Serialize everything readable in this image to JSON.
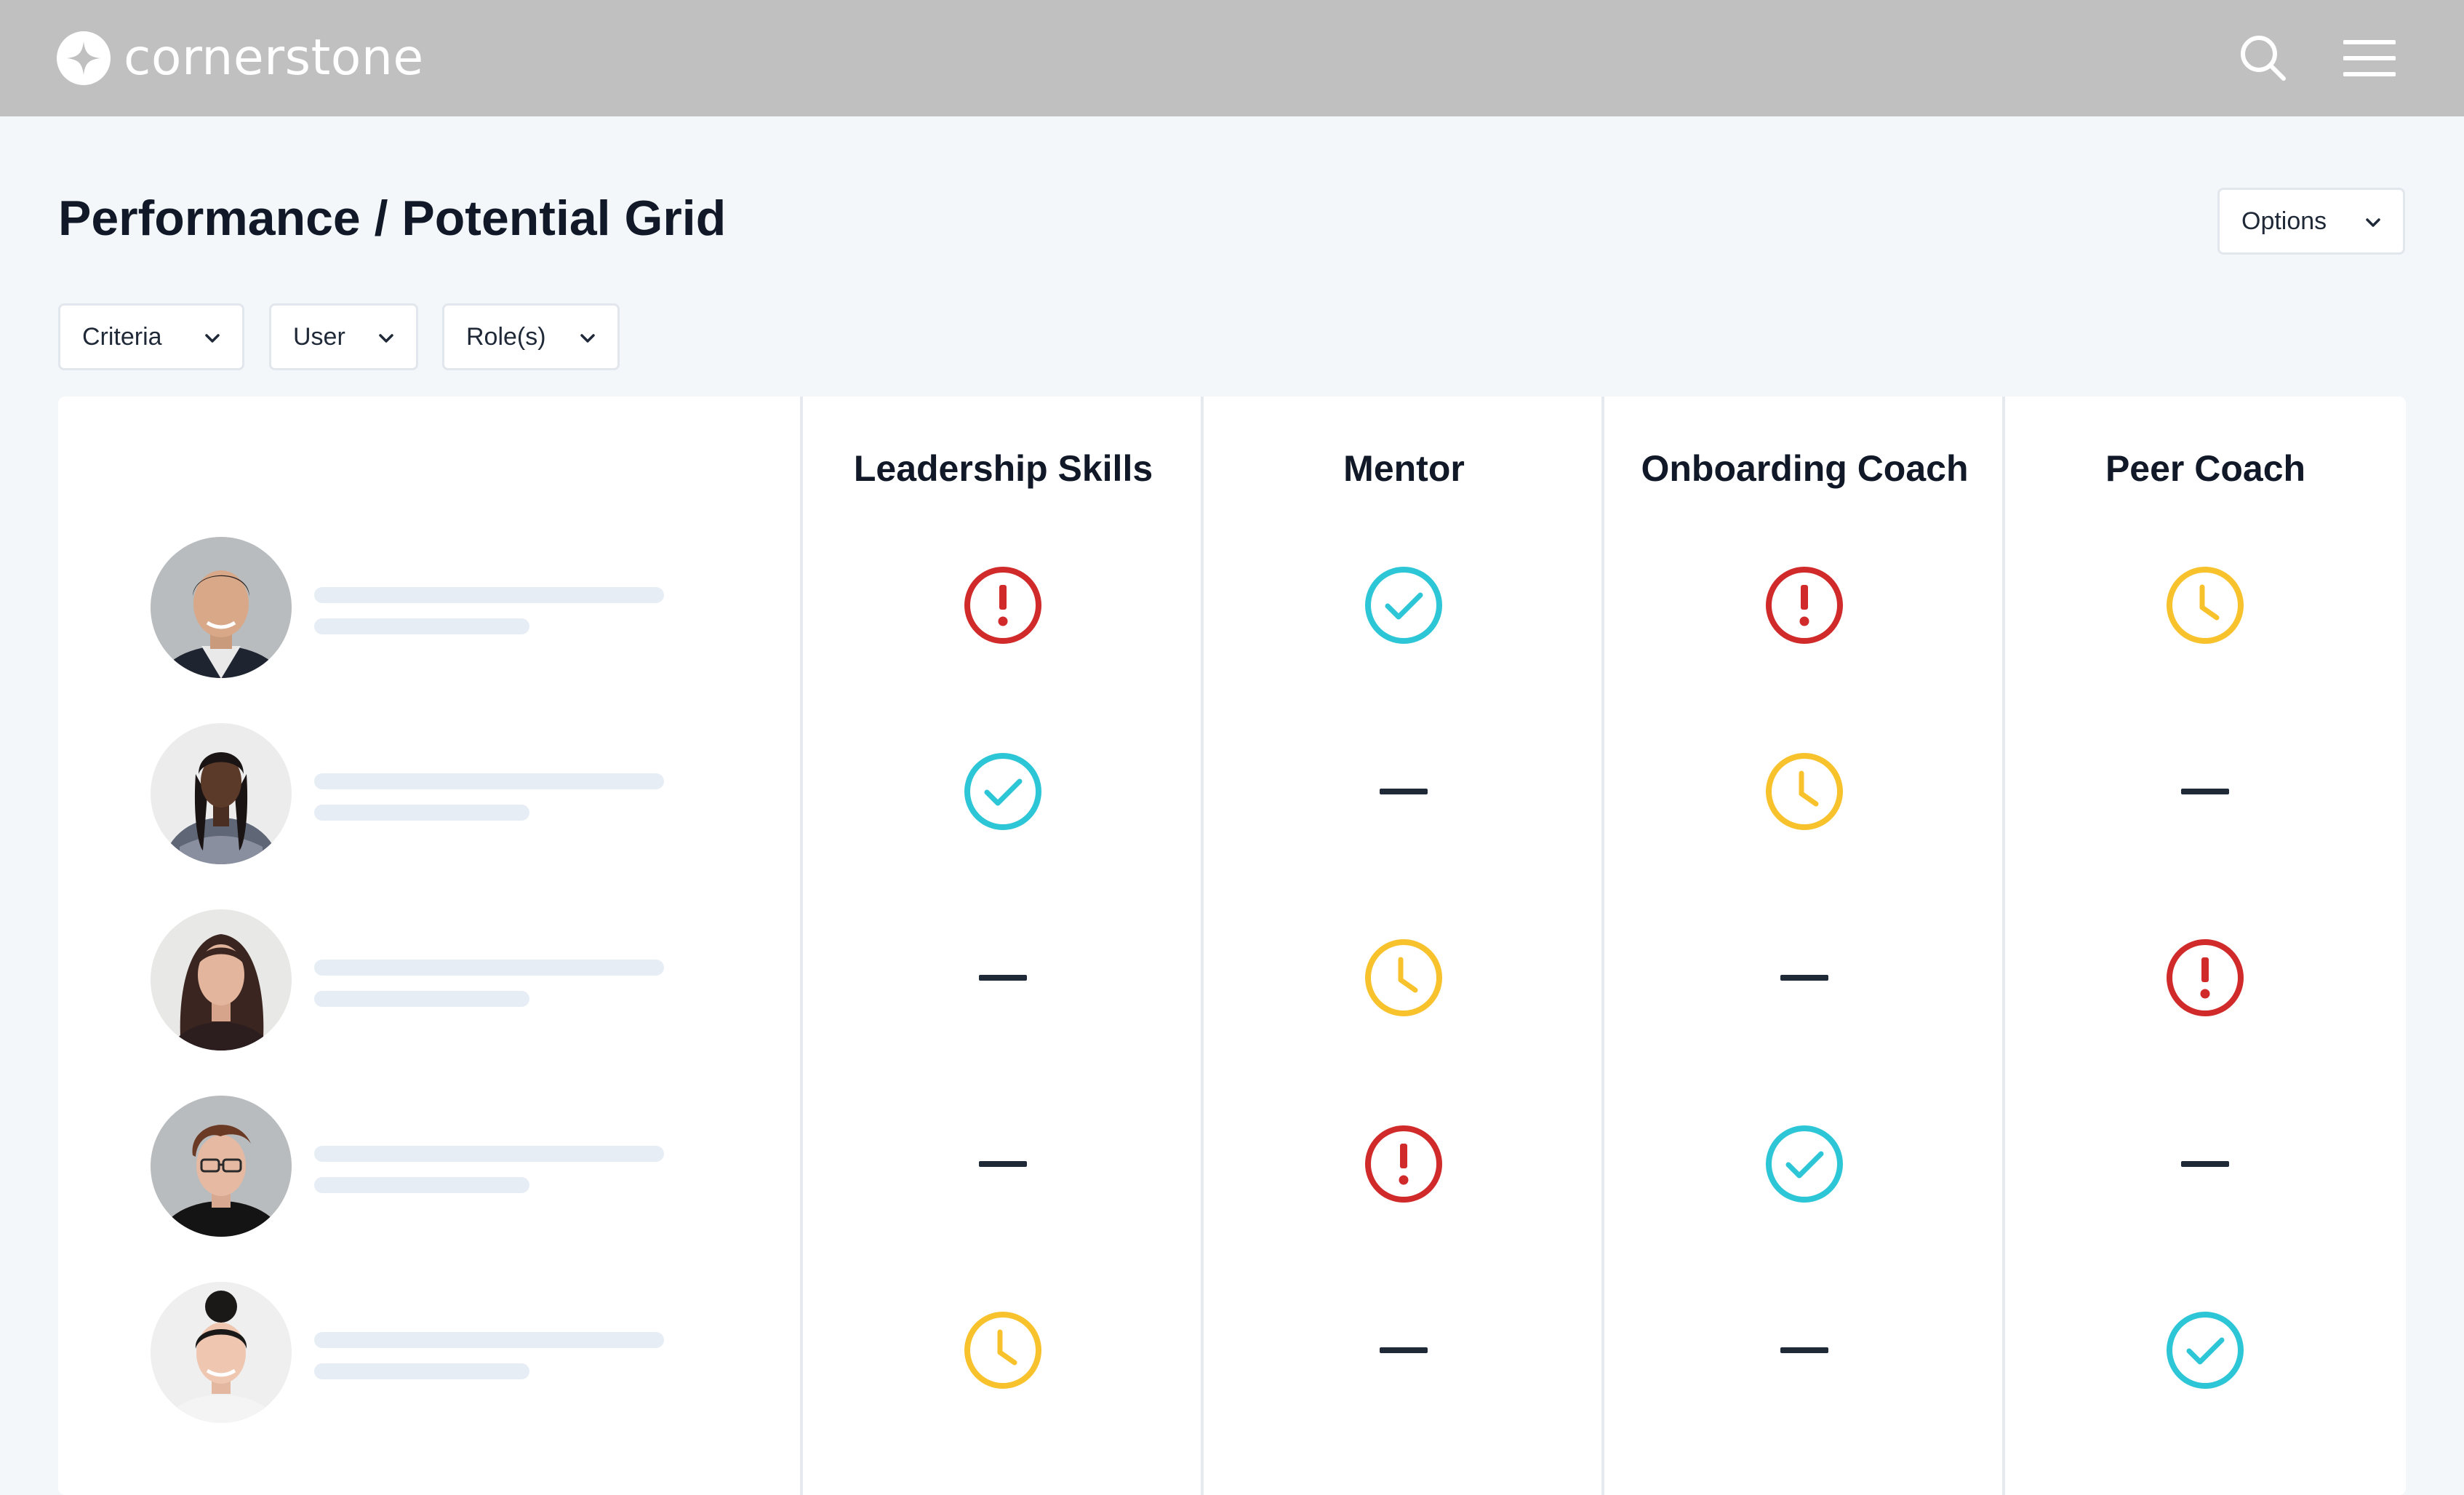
{
  "app": {
    "brand": "cornerstone"
  },
  "header": {
    "search_icon": "search-icon",
    "menu_icon": "hamburger-menu-icon"
  },
  "page": {
    "title": "Performance / Potential Grid",
    "options_label": "Options"
  },
  "filters": {
    "criteria_label": "Criteria",
    "user_label": "User",
    "roles_label": "Role(s)"
  },
  "grid": {
    "columns": [
      "Leadership Skills",
      "Mentor",
      "Onboarding Coach",
      "Peer Coach"
    ],
    "rows": [
      {
        "avatar": "avatar-man-dark-hair",
        "statuses": [
          "alert",
          "complete",
          "alert",
          "pending"
        ]
      },
      {
        "avatar": "avatar-woman-braids",
        "statuses": [
          "complete",
          "none",
          "pending",
          "none"
        ]
      },
      {
        "avatar": "avatar-woman-long-hair",
        "statuses": [
          "none",
          "pending",
          "none",
          "alert"
        ]
      },
      {
        "avatar": "avatar-man-glasses",
        "statuses": [
          "none",
          "alert",
          "complete",
          "none"
        ]
      },
      {
        "avatar": "avatar-woman-bun",
        "statuses": [
          "pending",
          "none",
          "none",
          "complete"
        ]
      }
    ]
  },
  "colors": {
    "topbar": "#c0c0c0",
    "alert": "#d12a2a",
    "complete": "#2dc6d6",
    "pending": "#f8c22c",
    "none": "#1f2937"
  }
}
